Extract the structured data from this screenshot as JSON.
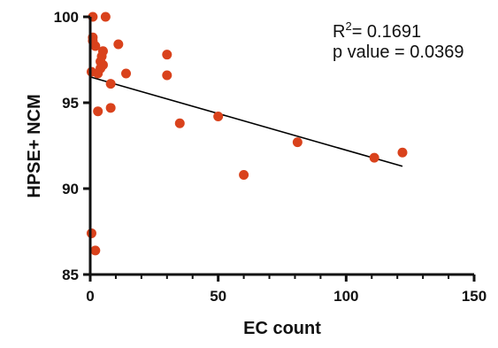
{
  "chart_data": {
    "type": "scatter",
    "title": "",
    "xlabel": "EC count",
    "ylabel": "HPSE+ NCM",
    "xlim": [
      0,
      150
    ],
    "ylim": [
      85,
      100
    ],
    "x_ticks": [
      0,
      50,
      100,
      150
    ],
    "y_ticks": [
      85,
      90,
      95,
      100
    ],
    "grid": false,
    "point_color": "#d9421c",
    "line_color": "#000000",
    "annotations": {
      "r2_prefix": "R",
      "r2_sup": "2",
      "r2_value": "= 0.1691",
      "p_text": "p value = 0.0369"
    },
    "regression": {
      "x": [
        0,
        122
      ],
      "y": [
        96.5,
        91.3
      ]
    },
    "points": [
      {
        "x": 0.5,
        "y": 96.8
      },
      {
        "x": 0.5,
        "y": 87.4
      },
      {
        "x": 1,
        "y": 100
      },
      {
        "x": 1,
        "y": 98.8
      },
      {
        "x": 1,
        "y": 98.6
      },
      {
        "x": 2,
        "y": 98.3
      },
      {
        "x": 2,
        "y": 86.4
      },
      {
        "x": 3,
        "y": 96.7
      },
      {
        "x": 3,
        "y": 94.5
      },
      {
        "x": 4,
        "y": 97.0
      },
      {
        "x": 4,
        "y": 97.4
      },
      {
        "x": 4.5,
        "y": 97.7
      },
      {
        "x": 5,
        "y": 97.2
      },
      {
        "x": 5,
        "y": 98.0
      },
      {
        "x": 6,
        "y": 100
      },
      {
        "x": 8,
        "y": 96.1
      },
      {
        "x": 8,
        "y": 94.7
      },
      {
        "x": 11,
        "y": 98.4
      },
      {
        "x": 14,
        "y": 96.7
      },
      {
        "x": 30,
        "y": 97.8
      },
      {
        "x": 30,
        "y": 96.6
      },
      {
        "x": 35,
        "y": 93.8
      },
      {
        "x": 50,
        "y": 94.2
      },
      {
        "x": 60,
        "y": 90.8
      },
      {
        "x": 81,
        "y": 92.7
      },
      {
        "x": 111,
        "y": 91.8
      },
      {
        "x": 122,
        "y": 92.1
      }
    ]
  }
}
